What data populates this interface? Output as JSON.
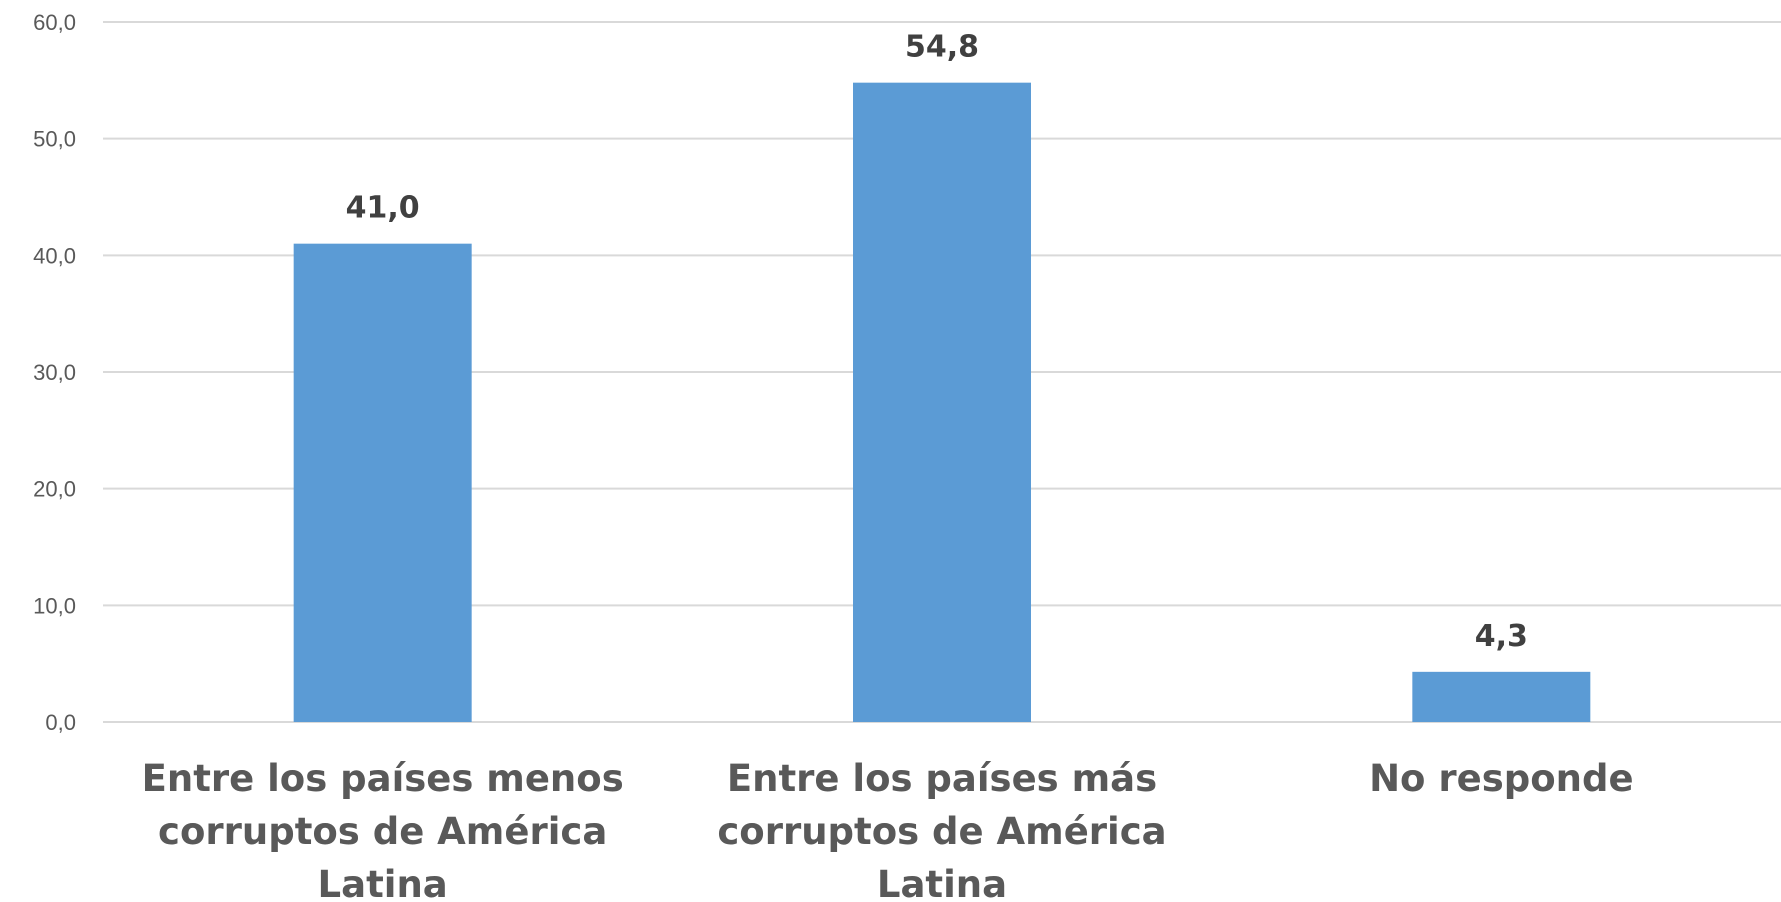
{
  "chart_data": {
    "type": "bar",
    "title": "",
    "xlabel": "",
    "ylabel": "",
    "ylim": [
      0,
      60
    ],
    "ytick_step": 10,
    "ytick_labels": [
      "0,0",
      "10,0",
      "20,0",
      "30,0",
      "40,0",
      "50,0",
      "60,0"
    ],
    "grid": true,
    "bar_color": "#5b9bd5",
    "categories": [
      [
        "Entre los países menos",
        "corruptos de América",
        "Latina"
      ],
      [
        "Entre los países más",
        "corruptos de América",
        "Latina"
      ],
      [
        "No responde"
      ]
    ],
    "values": [
      41.0,
      54.8,
      4.3
    ],
    "data_labels": [
      "41,0",
      "54,8",
      "4,3"
    ]
  }
}
